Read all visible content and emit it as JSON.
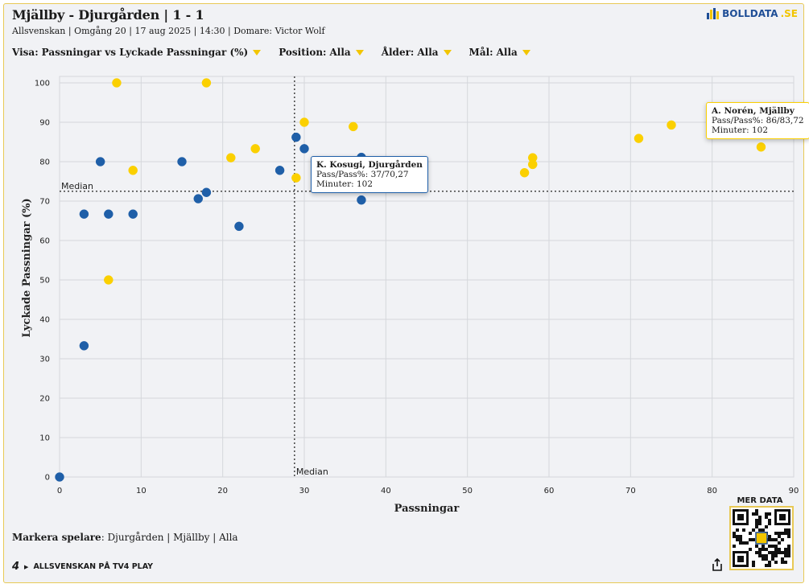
{
  "header": {
    "title": "Mjällby - Djurgården | 1 - 1",
    "subtitle": "Allsvenskan | Omgång 20 | 17 aug 2025 | 14:30 | Domare: Victor Wolf",
    "logo_text": "BOLLDATA",
    "logo_suffix": ".SE"
  },
  "filters": [
    {
      "label": "Visa:",
      "value": "Passningar vs Lyckade Passningar (%)"
    },
    {
      "label": "Position:",
      "value": "Alla"
    },
    {
      "label": "Ålder:",
      "value": "Alla"
    },
    {
      "label": "Mål:",
      "value": "Alla"
    }
  ],
  "footer": {
    "markera_label": "Markera spelare",
    "markera_options": [
      "Djurgården",
      "Mjällby",
      "Alla"
    ],
    "tv4_logo": "4",
    "tv4_text": "ALLSVENSKAN PÅ TV4 PLAY",
    "mer_data": "MER DATA"
  },
  "colors": {
    "djurgarden": "#1f5fa8",
    "mjallby": "#fbd000",
    "accent": "#e8c955"
  },
  "chart_data": {
    "type": "scatter",
    "xlabel": "Passningar",
    "ylabel": "Lyckade Passningar (%)",
    "xlim": [
      0,
      90
    ],
    "ylim": [
      0,
      100
    ],
    "xticks": [
      0,
      10,
      20,
      30,
      40,
      50,
      60,
      70,
      80,
      90
    ],
    "yticks": [
      0,
      10,
      20,
      30,
      40,
      50,
      60,
      70,
      80,
      90,
      100
    ],
    "grid": true,
    "median_x": 28.8,
    "median_y": 72.5,
    "median_label_x": "Median",
    "median_label_y": "Median",
    "series": [
      {
        "name": "Djurgården",
        "color": "#1f5fa8",
        "points": [
          [
            0,
            0
          ],
          [
            3,
            33.3
          ],
          [
            3,
            66.7
          ],
          [
            5,
            80
          ],
          [
            6,
            66.7
          ],
          [
            9,
            66.7
          ],
          [
            15,
            80
          ],
          [
            17,
            70.6
          ],
          [
            18,
            72.2
          ],
          [
            22,
            63.6
          ],
          [
            27,
            77.8
          ],
          [
            29,
            86.2
          ],
          [
            30,
            83.3
          ],
          [
            37,
            81.1
          ],
          [
            37,
            70.27
          ]
        ]
      },
      {
        "name": "Mjällby",
        "color": "#fbd000",
        "points": [
          [
            6,
            50
          ],
          [
            7,
            100
          ],
          [
            9,
            77.8
          ],
          [
            18,
            100
          ],
          [
            21,
            81
          ],
          [
            24,
            83.3
          ],
          [
            29,
            75.9
          ],
          [
            30,
            90
          ],
          [
            36,
            88.9
          ],
          [
            57,
            77.2
          ],
          [
            58,
            79.3
          ],
          [
            58,
            81
          ],
          [
            71,
            85.9
          ],
          [
            75,
            89.3
          ],
          [
            86,
            83.72
          ]
        ]
      }
    ],
    "tooltips": [
      {
        "name": "K. Kosugi, Djurgården",
        "line1": "Pass/Pass%: 37/70,27",
        "line2": "Minuter: 102",
        "x": 37,
        "y": 70.27,
        "team": "djurgarden"
      },
      {
        "name": "A. Norén, Mjällby",
        "line1": "Pass/Pass%: 86/83,72",
        "line2": "Minuter: 102",
        "x": 86,
        "y": 83.72,
        "team": "mjallby"
      }
    ]
  }
}
